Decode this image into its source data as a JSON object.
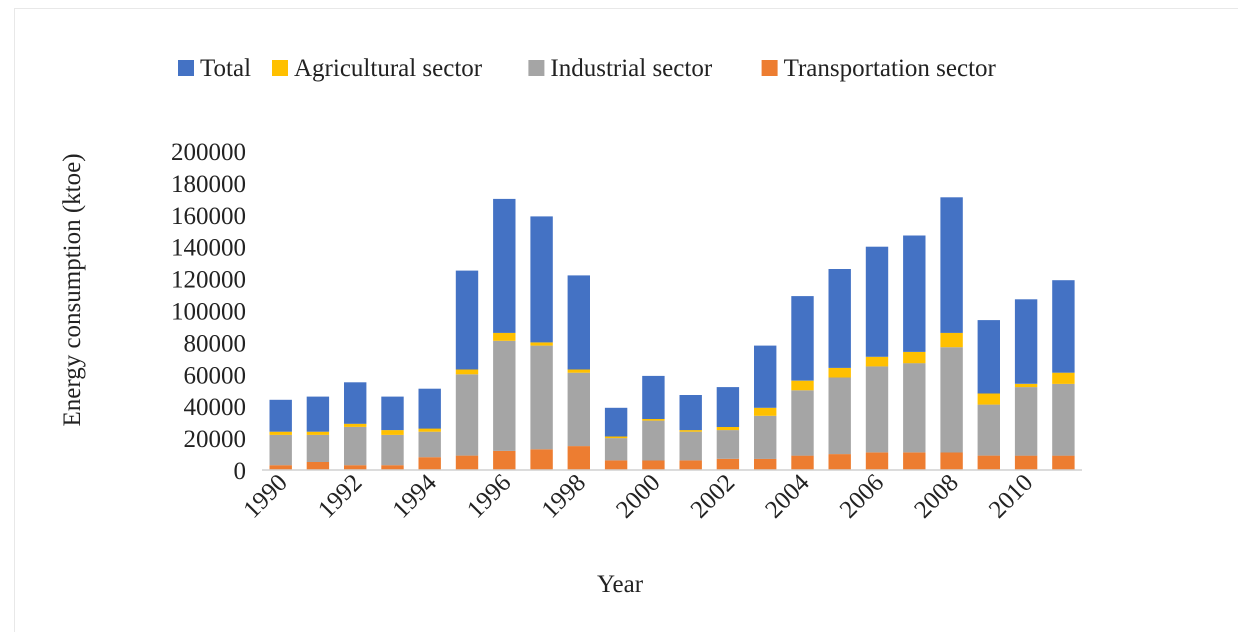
{
  "chart_data": {
    "type": "bar",
    "stacked": true,
    "title": "",
    "xlabel": "Year",
    "ylabel": "Energy consumption (ktoe)",
    "ylim": [
      0,
      200000
    ],
    "yticks": [
      "0",
      "20000",
      "40000",
      "60000",
      "80000",
      "100000",
      "120000",
      "140000",
      "160000",
      "180000",
      "200000"
    ],
    "x_tick_labels": [
      "1990",
      "1992",
      "1994",
      "1996",
      "1998",
      "2000",
      "2002",
      "2004",
      "2006",
      "2008",
      "2010"
    ],
    "categories": [
      "1990",
      "1991",
      "1992",
      "1993",
      "1994",
      "1995",
      "1996",
      "1997",
      "1998",
      "1999",
      "2000",
      "2001",
      "2002",
      "2003",
      "2004",
      "2005",
      "2006",
      "2007",
      "2008",
      "2009",
      "2010",
      "2011"
    ],
    "legend_position": "top",
    "grid": false,
    "series": [
      {
        "name": "Transportation sector",
        "color": "#ED7D31",
        "values": [
          3000,
          5000,
          3000,
          3000,
          8000,
          9000,
          12000,
          13000,
          15000,
          6000,
          6000,
          6000,
          7000,
          7000,
          9000,
          10000,
          11000,
          11000,
          11000,
          9000,
          9000,
          9000
        ]
      },
      {
        "name": "Industrial sector",
        "color": "#A5A5A5",
        "values": [
          19000,
          17000,
          24000,
          19000,
          16000,
          51000,
          69000,
          65000,
          46000,
          14000,
          25000,
          18000,
          18000,
          27000,
          41000,
          48000,
          54000,
          56000,
          66000,
          32000,
          43000,
          45000
        ]
      },
      {
        "name": "Agricultural sector",
        "color": "#FFC000",
        "values": [
          2000,
          2000,
          2000,
          3000,
          2000,
          3000,
          5000,
          2000,
          2000,
          1000,
          1000,
          1000,
          2000,
          5000,
          6000,
          6000,
          6000,
          7000,
          9000,
          7000,
          2000,
          7000
        ]
      },
      {
        "name": "Total",
        "color": "#4472C4",
        "values": [
          20000,
          22000,
          26000,
          21000,
          25000,
          62000,
          84000,
          79000,
          59000,
          18000,
          27000,
          22000,
          25000,
          39000,
          53000,
          62000,
          69000,
          73000,
          85000,
          46000,
          53000,
          58000
        ]
      }
    ],
    "legend_order": [
      "Total",
      "Agricultural sector",
      "Industrial sector",
      "Transportation sector"
    ]
  }
}
